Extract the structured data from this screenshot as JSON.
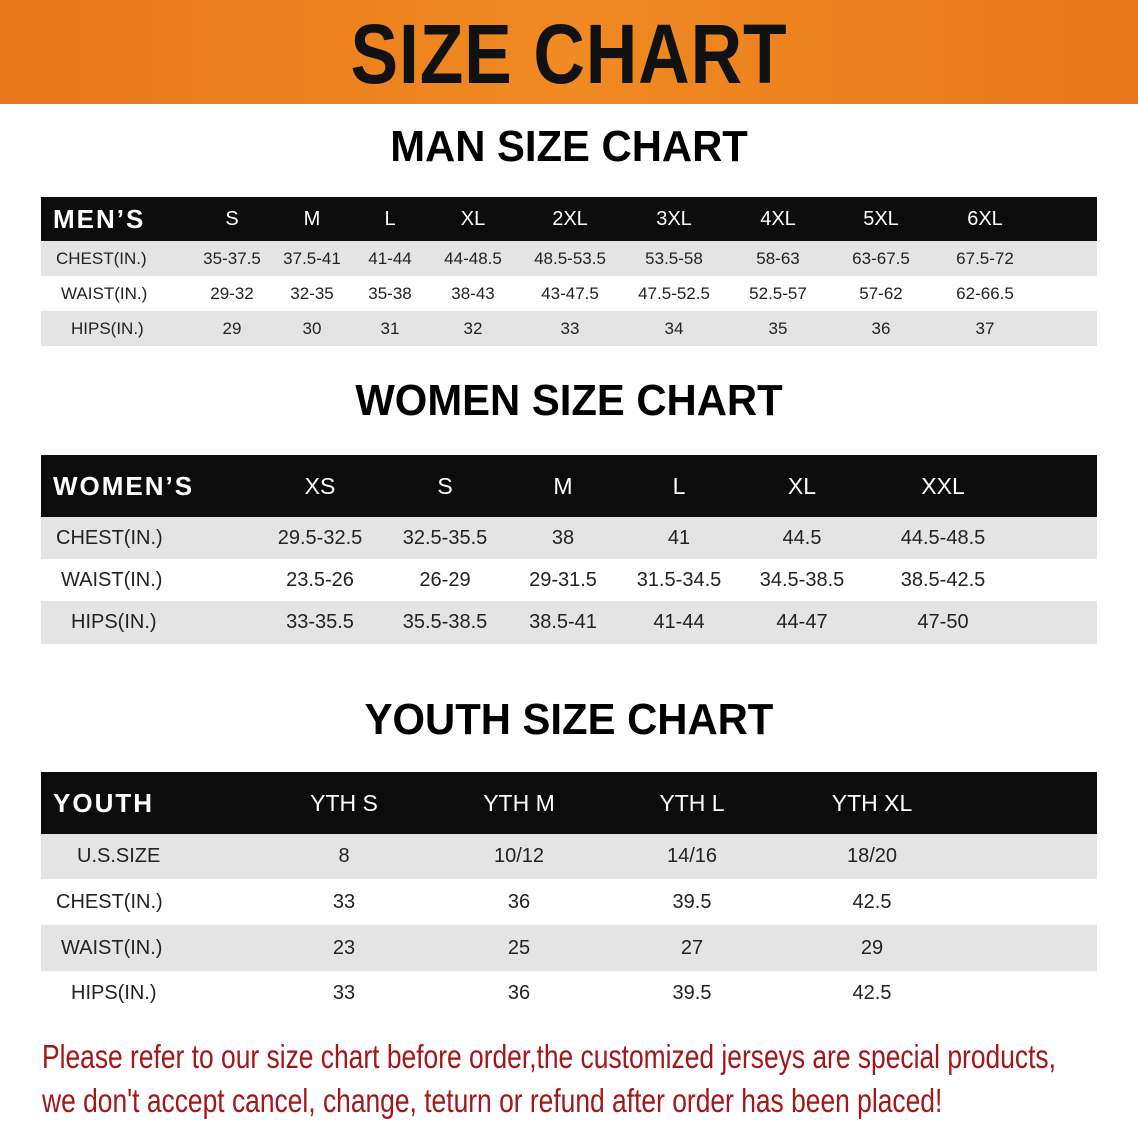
{
  "banner_title": "SIZE CHART",
  "colors": {
    "banner": "#ee8020",
    "header_row": "#0c0c0c",
    "row_gray": "#e4e4e4",
    "note": "#a3161a"
  },
  "men": {
    "title": "MAN SIZE CHART",
    "header": "MEN’S",
    "sizes": [
      "S",
      "M",
      "L",
      "XL",
      "2XL",
      "3XL",
      "4XL",
      "5XL",
      "6XL"
    ],
    "rows": [
      {
        "label": "CHEST(IN.)",
        "values": [
          "35-37.5",
          "37.5-41",
          "41-44",
          "44-48.5",
          "48.5-53.5",
          "53.5-58",
          "58-63",
          "63-67.5",
          "67.5-72"
        ]
      },
      {
        "label": "WAIST(IN.)",
        "values": [
          "29-32",
          "32-35",
          "35-38",
          "38-43",
          "43-47.5",
          "47.5-52.5",
          "52.5-57",
          "57-62",
          "62-66.5"
        ]
      },
      {
        "label": "HIPS(IN.)",
        "values": [
          "29",
          "30",
          "31",
          "32",
          "33",
          "34",
          "35",
          "36",
          "37"
        ]
      }
    ]
  },
  "women": {
    "title": "WOMEN SIZE CHART",
    "header": "WOMEN’S",
    "sizes": [
      "XS",
      "S",
      "M",
      "L",
      "XL",
      "XXL"
    ],
    "rows": [
      {
        "label": "CHEST(IN.)",
        "values": [
          "29.5-32.5",
          "32.5-35.5",
          "38",
          "41",
          "44.5",
          "44.5-48.5"
        ]
      },
      {
        "label": "WAIST(IN.)",
        "values": [
          "23.5-26",
          "26-29",
          "29-31.5",
          "31.5-34.5",
          "34.5-38.5",
          "38.5-42.5"
        ]
      },
      {
        "label": "HIPS(IN.)",
        "values": [
          "33-35.5",
          "35.5-38.5",
          "38.5-41",
          "41-44",
          "44-47",
          "47-50"
        ]
      }
    ]
  },
  "youth": {
    "title": "YOUTH SIZE CHART",
    "header": "YOUTH",
    "sizes": [
      "YTH S",
      "YTH M",
      "YTH L",
      "YTH XL"
    ],
    "rows": [
      {
        "label": "U.S.SIZE",
        "values": [
          "8",
          "10/12",
          "14/16",
          "18/20"
        ]
      },
      {
        "label": "CHEST(IN.)",
        "values": [
          "33",
          "36",
          "39.5",
          "42.5"
        ]
      },
      {
        "label": "WAIST(IN.)",
        "values": [
          "23",
          "25",
          "27",
          "29"
        ]
      },
      {
        "label": "HIPS(IN.)",
        "values": [
          "33",
          "36",
          "39.5",
          "42.5"
        ]
      }
    ]
  },
  "note": {
    "line1": "Please refer to our size chart before order,the customized jerseys are special products,",
    "line2": "we don't accept cancel, change, teturn or refund after order has been placed!"
  }
}
